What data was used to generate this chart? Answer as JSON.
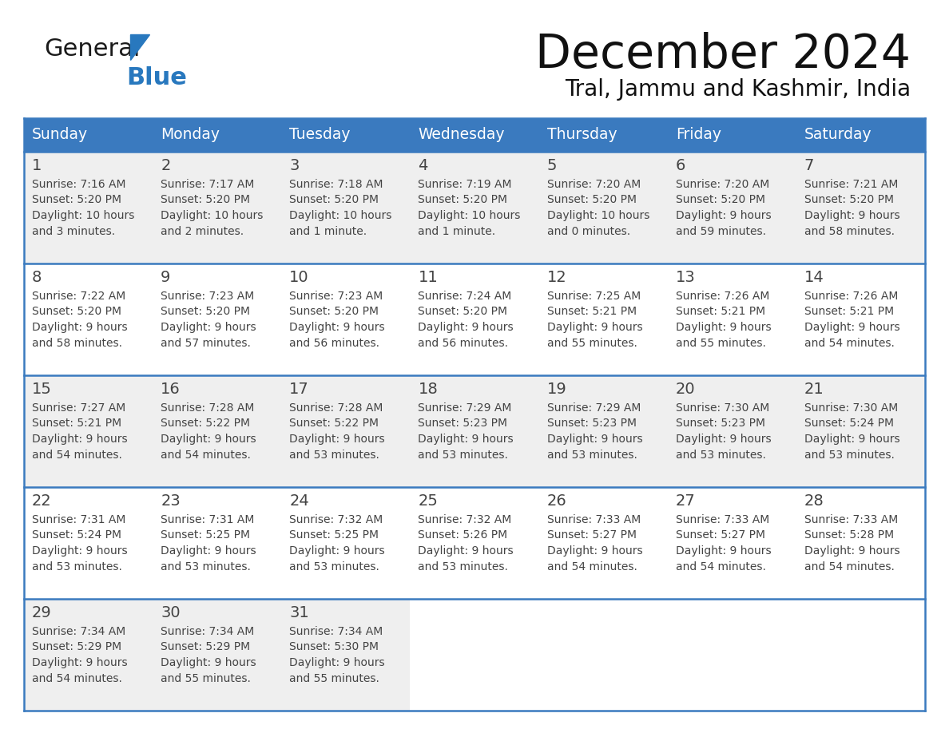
{
  "title": "December 2024",
  "subtitle": "Tral, Jammu and Kashmir, India",
  "header_bg_color": "#3a7abf",
  "header_text_color": "#ffffff",
  "cell_bg_color_odd": "#efefef",
  "cell_bg_color_even": "#ffffff",
  "grid_line_color": "#3a7abf",
  "text_color": "#444444",
  "days_of_week": [
    "Sunday",
    "Monday",
    "Tuesday",
    "Wednesday",
    "Thursday",
    "Friday",
    "Saturday"
  ],
  "logo_color1": "#1a1a1a",
  "logo_color2": "#2878be",
  "calendar_data": [
    {
      "week": 1,
      "days": [
        {
          "day": 1,
          "sunrise": "7:16 AM",
          "sunset": "5:20 PM",
          "daylight_h": "10 hours",
          "daylight_m": "3 minutes."
        },
        {
          "day": 2,
          "sunrise": "7:17 AM",
          "sunset": "5:20 PM",
          "daylight_h": "10 hours",
          "daylight_m": "2 minutes."
        },
        {
          "day": 3,
          "sunrise": "7:18 AM",
          "sunset": "5:20 PM",
          "daylight_h": "10 hours",
          "daylight_m": "1 minute."
        },
        {
          "day": 4,
          "sunrise": "7:19 AM",
          "sunset": "5:20 PM",
          "daylight_h": "10 hours",
          "daylight_m": "1 minute."
        },
        {
          "day": 5,
          "sunrise": "7:20 AM",
          "sunset": "5:20 PM",
          "daylight_h": "10 hours",
          "daylight_m": "0 minutes."
        },
        {
          "day": 6,
          "sunrise": "7:20 AM",
          "sunset": "5:20 PM",
          "daylight_h": "9 hours",
          "daylight_m": "59 minutes."
        },
        {
          "day": 7,
          "sunrise": "7:21 AM",
          "sunset": "5:20 PM",
          "daylight_h": "9 hours",
          "daylight_m": "58 minutes."
        }
      ]
    },
    {
      "week": 2,
      "days": [
        {
          "day": 8,
          "sunrise": "7:22 AM",
          "sunset": "5:20 PM",
          "daylight_h": "9 hours",
          "daylight_m": "58 minutes."
        },
        {
          "day": 9,
          "sunrise": "7:23 AM",
          "sunset": "5:20 PM",
          "daylight_h": "9 hours",
          "daylight_m": "57 minutes."
        },
        {
          "day": 10,
          "sunrise": "7:23 AM",
          "sunset": "5:20 PM",
          "daylight_h": "9 hours",
          "daylight_m": "56 minutes."
        },
        {
          "day": 11,
          "sunrise": "7:24 AM",
          "sunset": "5:20 PM",
          "daylight_h": "9 hours",
          "daylight_m": "56 minutes."
        },
        {
          "day": 12,
          "sunrise": "7:25 AM",
          "sunset": "5:21 PM",
          "daylight_h": "9 hours",
          "daylight_m": "55 minutes."
        },
        {
          "day": 13,
          "sunrise": "7:26 AM",
          "sunset": "5:21 PM",
          "daylight_h": "9 hours",
          "daylight_m": "55 minutes."
        },
        {
          "day": 14,
          "sunrise": "7:26 AM",
          "sunset": "5:21 PM",
          "daylight_h": "9 hours",
          "daylight_m": "54 minutes."
        }
      ]
    },
    {
      "week": 3,
      "days": [
        {
          "day": 15,
          "sunrise": "7:27 AM",
          "sunset": "5:21 PM",
          "daylight_h": "9 hours",
          "daylight_m": "54 minutes."
        },
        {
          "day": 16,
          "sunrise": "7:28 AM",
          "sunset": "5:22 PM",
          "daylight_h": "9 hours",
          "daylight_m": "54 minutes."
        },
        {
          "day": 17,
          "sunrise": "7:28 AM",
          "sunset": "5:22 PM",
          "daylight_h": "9 hours",
          "daylight_m": "53 minutes."
        },
        {
          "day": 18,
          "sunrise": "7:29 AM",
          "sunset": "5:23 PM",
          "daylight_h": "9 hours",
          "daylight_m": "53 minutes."
        },
        {
          "day": 19,
          "sunrise": "7:29 AM",
          "sunset": "5:23 PM",
          "daylight_h": "9 hours",
          "daylight_m": "53 minutes."
        },
        {
          "day": 20,
          "sunrise": "7:30 AM",
          "sunset": "5:23 PM",
          "daylight_h": "9 hours",
          "daylight_m": "53 minutes."
        },
        {
          "day": 21,
          "sunrise": "7:30 AM",
          "sunset": "5:24 PM",
          "daylight_h": "9 hours",
          "daylight_m": "53 minutes."
        }
      ]
    },
    {
      "week": 4,
      "days": [
        {
          "day": 22,
          "sunrise": "7:31 AM",
          "sunset": "5:24 PM",
          "daylight_h": "9 hours",
          "daylight_m": "53 minutes."
        },
        {
          "day": 23,
          "sunrise": "7:31 AM",
          "sunset": "5:25 PM",
          "daylight_h": "9 hours",
          "daylight_m": "53 minutes."
        },
        {
          "day": 24,
          "sunrise": "7:32 AM",
          "sunset": "5:25 PM",
          "daylight_h": "9 hours",
          "daylight_m": "53 minutes."
        },
        {
          "day": 25,
          "sunrise": "7:32 AM",
          "sunset": "5:26 PM",
          "daylight_h": "9 hours",
          "daylight_m": "53 minutes."
        },
        {
          "day": 26,
          "sunrise": "7:33 AM",
          "sunset": "5:27 PM",
          "daylight_h": "9 hours",
          "daylight_m": "54 minutes."
        },
        {
          "day": 27,
          "sunrise": "7:33 AM",
          "sunset": "5:27 PM",
          "daylight_h": "9 hours",
          "daylight_m": "54 minutes."
        },
        {
          "day": 28,
          "sunrise": "7:33 AM",
          "sunset": "5:28 PM",
          "daylight_h": "9 hours",
          "daylight_m": "54 minutes."
        }
      ]
    },
    {
      "week": 5,
      "days": [
        {
          "day": 29,
          "sunrise": "7:34 AM",
          "sunset": "5:29 PM",
          "daylight_h": "9 hours",
          "daylight_m": "54 minutes."
        },
        {
          "day": 30,
          "sunrise": "7:34 AM",
          "sunset": "5:29 PM",
          "daylight_h": "9 hours",
          "daylight_m": "55 minutes."
        },
        {
          "day": 31,
          "sunrise": "7:34 AM",
          "sunset": "5:30 PM",
          "daylight_h": "9 hours",
          "daylight_m": "55 minutes."
        }
      ]
    }
  ]
}
